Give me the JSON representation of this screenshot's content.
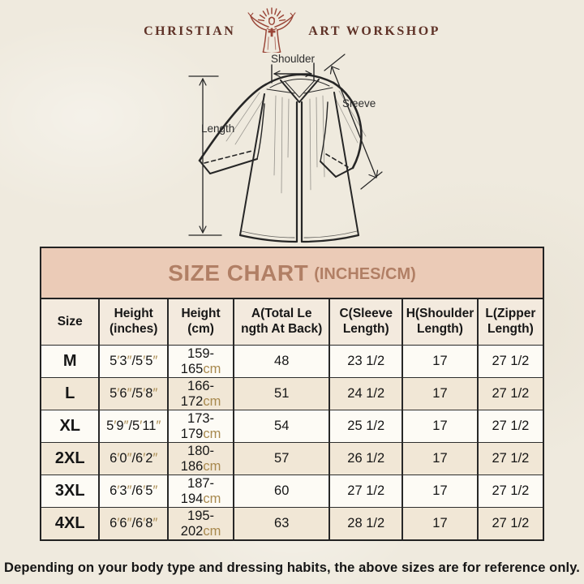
{
  "page": {
    "footer_note": "Depending on your body type and dressing habits, the above sizes are for reference only."
  },
  "logo": {
    "left_text": "CHRISTIAN",
    "right_text": "ART WORKSHOP",
    "icon": "jesus-figure-icon"
  },
  "diagram": {
    "shoulder_label": "Shoulder",
    "sleeve_label": "Sleeve",
    "length_label": "Length"
  },
  "size_chart": {
    "title": "SIZE CHART",
    "unit_note": "(INCHES/CM)",
    "columns": [
      [
        "Size"
      ],
      [
        "Height",
        "(inches)"
      ],
      [
        "Height",
        "(cm)"
      ],
      [
        "A(Total Le",
        "ngth At Back)"
      ],
      [
        "C(Sleeve",
        "Length)"
      ],
      [
        "H(Shoulder",
        "Length)"
      ],
      [
        "L(Zipper",
        "Length)"
      ]
    ],
    "rows": [
      [
        "M",
        "5′3″/5′5″",
        "159-165cm",
        "48",
        "23 1/2",
        "17",
        "27 1/2"
      ],
      [
        "L",
        "5′6″/5′8″",
        "166-172cm",
        "51",
        "24 1/2",
        "17",
        "27 1/2"
      ],
      [
        "XL",
        "5′9″/5′11″",
        "173-179cm",
        "54",
        "25 1/2",
        "17",
        "27 1/2"
      ],
      [
        "2XL",
        "6′0″/6′2″",
        "180-186cm",
        "57",
        "26 1/2",
        "17",
        "27 1/2"
      ],
      [
        "3XL",
        "6′3″/6′5″",
        "187-194cm",
        "60",
        "27 1/2",
        "17",
        "27 1/2"
      ],
      [
        "4XL",
        "6′6″/6′8″",
        "195-202cm",
        "63",
        "28 1/2",
        "17",
        "27 1/2"
      ]
    ]
  },
  "colors": {
    "paper_bg": "#efeade",
    "title_bar_bg": "#ebcbb7",
    "title_text": "#b17f65",
    "header_row_bg": "#f3eade",
    "row_white": "#fdfbf5",
    "row_beige": "#f1e7d6",
    "table_border": "#232323",
    "unit_accent": "#a8894e",
    "logo_red": "#9a4638",
    "logo_text": "#5f3227"
  }
}
